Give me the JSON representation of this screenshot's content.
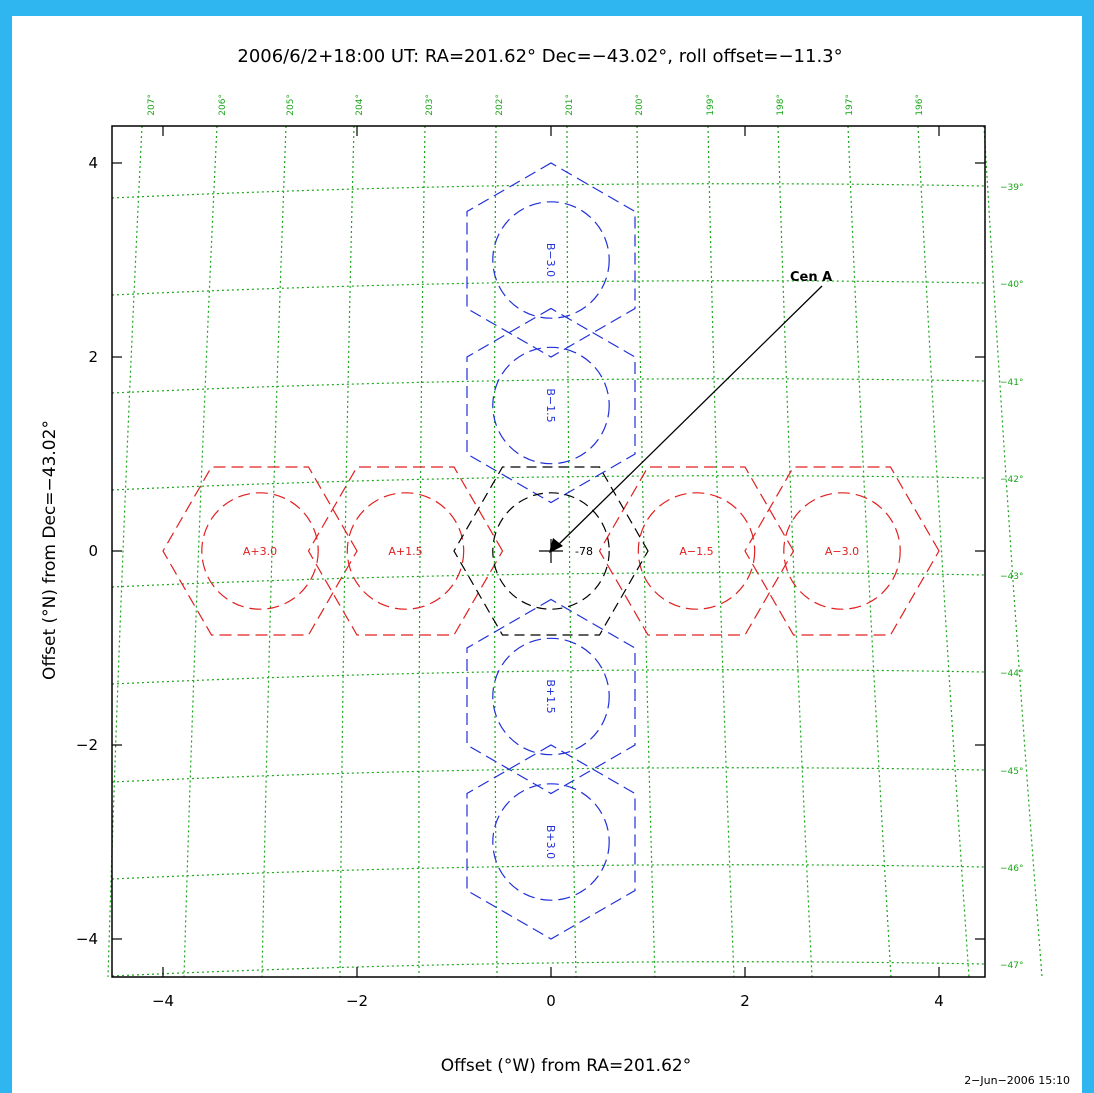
{
  "title": "2006/6/2+18:00 UT: RA=201.62° Dec=−43.02°, roll offset=−11.3°",
  "x_axis_label": "Offset (°W) from RA=201.62°",
  "y_axis_label": "Offset (°N) from Dec=−43.02°",
  "timestamp": "2−Jun−2006 15:10",
  "target_label": "Cen A",
  "x_ticks": [
    "−4",
    "−2",
    "0",
    "2",
    "4"
  ],
  "y_ticks": [
    "4",
    "2",
    "0",
    "−2",
    "−4"
  ],
  "ra_labels": [
    "207°",
    "206°",
    "205°",
    "204°",
    "203°",
    "202°",
    "201°",
    "200°",
    "199°",
    "198°",
    "197°",
    "196°"
  ],
  "dec_labels": [
    "−39°",
    "−40°",
    "−41°",
    "−42°",
    "−43°",
    "−44°",
    "−45°",
    "−46°",
    "−47°"
  ],
  "colors": {
    "frame": "#2fb6f0",
    "grid": "#1aa61a",
    "a_series": "#e02020",
    "b_series": "#2030d8",
    "center": "#000000"
  },
  "pointings": [
    {
      "id": "A+3.0",
      "label": "A+3.0",
      "x": -3.0,
      "y": 0,
      "series": "A"
    },
    {
      "id": "A+1.5",
      "label": "A+1.5",
      "x": -1.5,
      "y": 0,
      "series": "A"
    },
    {
      "id": "A-1.5",
      "label": "A−1.5",
      "x": 1.5,
      "y": 0,
      "series": "A"
    },
    {
      "id": "A-3.0",
      "label": "A−3.0",
      "x": 3.0,
      "y": 0,
      "series": "A"
    },
    {
      "id": "B-3.0",
      "label": "B−3.0",
      "x": 0,
      "y": 3.0,
      "series": "B"
    },
    {
      "id": "B-1.5",
      "label": "B−1.5",
      "x": 0,
      "y": 1.5,
      "series": "B"
    },
    {
      "id": "B+1.5",
      "label": "B+1.5",
      "x": 0,
      "y": -1.5,
      "series": "B"
    },
    {
      "id": "B+3.0",
      "label": "B+3.0",
      "x": 0,
      "y": -3.0,
      "series": "B"
    }
  ],
  "center_label": "-78"
}
